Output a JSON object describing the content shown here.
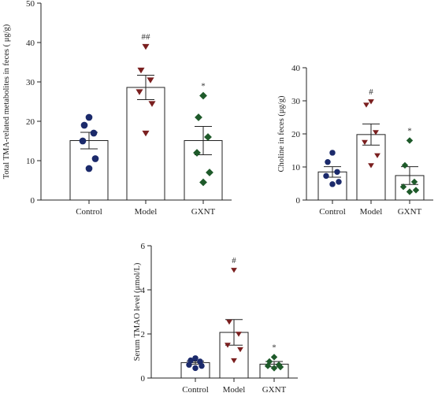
{
  "colors": {
    "Control": "#1b2a6b",
    "Model": "#7a1f1f",
    "GXNT": "#1e5a2a",
    "axis": "#222222"
  },
  "chart_data": [
    {
      "type": "bar",
      "ylabel": "Total TMA-related metabolites in feces ( μg/g)",
      "ylim": [
        0,
        50
      ],
      "yticks": [
        0,
        10,
        20,
        30,
        40,
        50
      ],
      "categories": [
        "Control",
        "Model",
        "GXNT"
      ],
      "values": [
        15.1,
        28.6,
        15.1
      ],
      "sem": [
        2.1,
        3.1,
        3.6
      ],
      "annotations": [
        "",
        "##",
        "*"
      ],
      "points": [
        [
          21,
          19,
          17,
          15,
          10.5,
          8
        ],
        [
          39,
          33,
          30.5,
          27.5,
          24.5,
          17
        ],
        [
          26.5,
          21,
          16,
          12,
          7,
          4.5
        ]
      ],
      "markers": [
        "circle",
        "triangle-down",
        "diamond"
      ]
    },
    {
      "type": "bar",
      "ylabel": "Choline in feces (μg/g)",
      "ylim": [
        0,
        40
      ],
      "yticks": [
        0,
        10,
        20,
        30,
        40
      ],
      "categories": [
        "Control",
        "Model",
        "GXNT"
      ],
      "values": [
        8.5,
        19.8,
        7.4
      ],
      "sem": [
        1.6,
        3.2,
        2.7
      ],
      "annotations": [
        "",
        "#",
        "*"
      ],
      "points": [
        [
          14.3,
          11.5,
          8.5,
          7.3,
          5.5,
          4.8
        ],
        [
          29.8,
          28.8,
          20.5,
          17.5,
          13.5,
          10.5
        ],
        [
          18,
          10.5,
          5.5,
          4,
          3,
          2.5
        ]
      ],
      "markers": [
        "circle",
        "triangle-down",
        "diamond"
      ]
    },
    {
      "type": "bar",
      "ylabel": "Serum TMAO level (μmol/L)",
      "ylim": [
        0,
        6
      ],
      "yticks": [
        0,
        2,
        4,
        6
      ],
      "categories": [
        "Control",
        "Model",
        "GXNT"
      ],
      "values": [
        0.7,
        2.07,
        0.63
      ],
      "sem": [
        0.07,
        0.58,
        0.12
      ],
      "annotations": [
        "",
        "#",
        "*"
      ],
      "points": [
        [
          0.9,
          0.8,
          0.75,
          0.6,
          0.55,
          0.45
        ],
        [
          4.9,
          2.55,
          2.0,
          1.5,
          1.3,
          0.8
        ],
        [
          0.95,
          0.75,
          0.6,
          0.55,
          0.5,
          0.45
        ]
      ],
      "markers": [
        "circle",
        "triangle-down",
        "diamond"
      ]
    }
  ]
}
